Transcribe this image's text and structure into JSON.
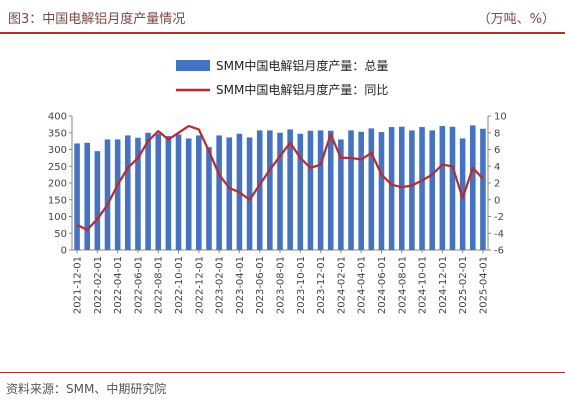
{
  "header": {
    "title": "图3：中国电解铝月度产量情况",
    "unit": "（万吨、%）"
  },
  "footer": {
    "source": "资料来源：SMM、中期研究院"
  },
  "colors": {
    "bar": "#4472C4",
    "line": "#C0282A",
    "rule": "#B3302A"
  },
  "chart_data": {
    "type": "bar",
    "title": "",
    "legend_position": "top-center",
    "grid": false,
    "y_left": {
      "min": 0,
      "max": 400,
      "step": 50
    },
    "y_right": {
      "min": -6,
      "max": 10,
      "step": 2
    },
    "x": [
      "2021-12",
      "2022-01",
      "2022-02",
      "2022-03",
      "2022-04",
      "2022-05",
      "2022-06",
      "2022-07",
      "2022-08",
      "2022-09",
      "2022-10",
      "2022-11",
      "2022-12",
      "2023-01",
      "2023-02",
      "2023-03",
      "2023-04",
      "2023-05",
      "2023-06",
      "2023-07",
      "2023-08",
      "2023-09",
      "2023-10",
      "2023-11",
      "2023-12",
      "2024-01",
      "2024-02",
      "2024-03",
      "2024-04",
      "2024-05",
      "2024-06",
      "2024-07",
      "2024-08",
      "2024-09",
      "2024-10",
      "2024-11",
      "2024-12",
      "2025-01",
      "2025-02",
      "2025-03",
      "2025-04"
    ],
    "x_tick_labels": [
      "2021-12-01",
      "2022-02-01",
      "2022-04-01",
      "2022-06-01",
      "2022-08-01",
      "2022-10-01",
      "2022-12-01",
      "2023-02-01",
      "2023-04-01",
      "2023-06-01",
      "2023-08-01",
      "2023-10-01",
      "2023-12-01",
      "2024-02-01",
      "2024-04-01",
      "2024-06-01",
      "2024-08-01",
      "2024-10-01",
      "2024-12-01",
      "2025-02-01",
      "2025-04-01"
    ],
    "series": [
      {
        "name": "SMM中国电解铝月度产量：总量",
        "type": "bar",
        "axis": "left",
        "values": [
          318,
          320,
          295,
          330,
          330,
          342,
          335,
          350,
          348,
          340,
          345,
          333,
          342,
          307,
          342,
          336,
          347,
          336,
          357,
          357,
          350,
          360,
          347,
          356,
          357,
          356,
          330,
          357,
          353,
          363,
          352,
          367,
          368,
          357,
          367,
          357,
          370,
          368,
          333,
          372,
          362
        ]
      },
      {
        "name": "SMM中国电解铝月度产量：同比",
        "type": "line",
        "axis": "right",
        "values": [
          -3.0,
          -3.6,
          -2.3,
          -0.6,
          1.8,
          3.8,
          5.0,
          7.0,
          8.2,
          7.2,
          8.0,
          8.8,
          8.4,
          5.8,
          3.0,
          1.4,
          0.9,
          0.0,
          1.8,
          3.6,
          5.2,
          6.8,
          5.0,
          3.8,
          4.2,
          7.8,
          5.0,
          5.0,
          4.8,
          5.6,
          3.0,
          1.8,
          1.5,
          1.7,
          2.3,
          3.0,
          4.2,
          4.0,
          0.2,
          3.8,
          2.5
        ]
      }
    ]
  }
}
